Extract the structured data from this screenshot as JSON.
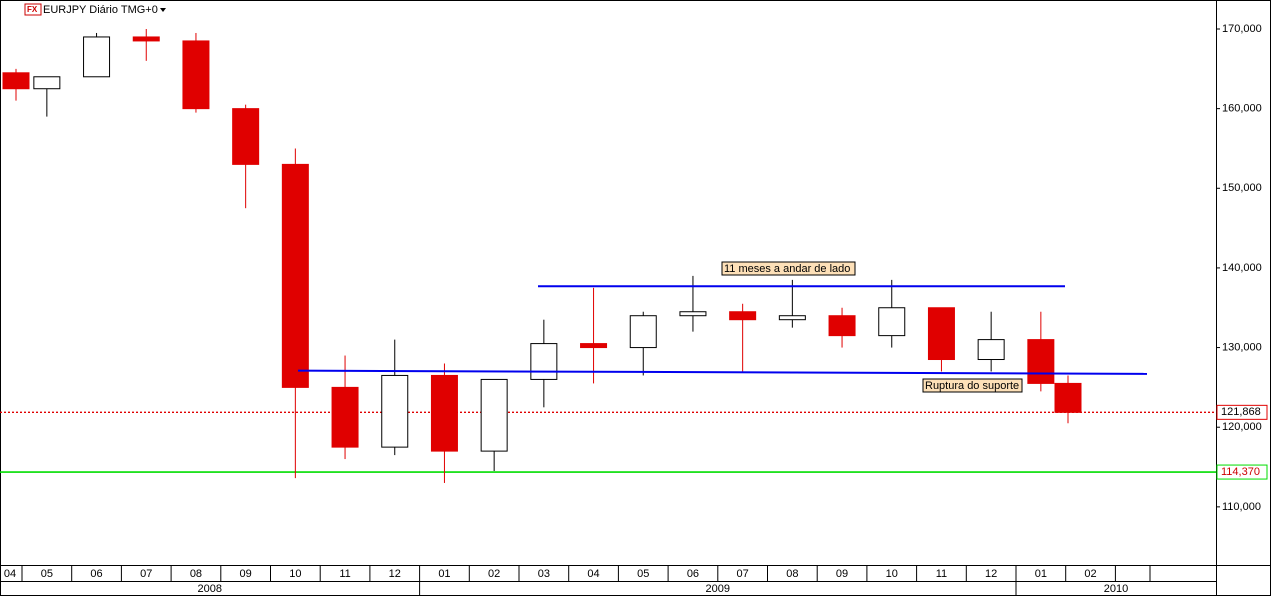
{
  "chart_data": {
    "type": "candlestick",
    "title": "EURJPY Diário TMG+0",
    "categories": [
      "04",
      "05",
      "06",
      "07",
      "08",
      "09",
      "10",
      "11",
      "12",
      "01",
      "02",
      "03",
      "04",
      "05",
      "06",
      "07",
      "08",
      "09",
      "10",
      "11",
      "12",
      "01",
      "02"
    ],
    "years": [
      "2008",
      "2009",
      "2010"
    ],
    "open": [
      164500,
      162500,
      164000,
      169000,
      168500,
      160000,
      153000,
      125000,
      117500,
      126500,
      117000,
      126000,
      130500,
      130000,
      134000,
      134500,
      133500,
      134000,
      131500,
      135000,
      128500,
      131000,
      125500
    ],
    "high": [
      165000,
      164000,
      169500,
      170000,
      169500,
      160500,
      155000,
      129000,
      131000,
      128000,
      126000,
      133500,
      137500,
      134500,
      139000,
      135500,
      138500,
      135000,
      138500,
      135000,
      134500,
      134500,
      126500
    ],
    "low": [
      161000,
      159000,
      164000,
      166000,
      159500,
      147500,
      113600,
      116000,
      116500,
      113000,
      114500,
      122500,
      125500,
      126500,
      132000,
      127000,
      132500,
      130000,
      130000,
      127000,
      127000,
      124500,
      120500
    ],
    "close": [
      162500,
      164000,
      169000,
      168500,
      160000,
      153000,
      125000,
      117500,
      126500,
      117000,
      126000,
      130500,
      130000,
      134000,
      134500,
      133500,
      134000,
      131500,
      135000,
      128500,
      131000,
      125500,
      121868
    ],
    "up_color": "#ffffff",
    "down_color": "#e00000",
    "ylim": [
      102700,
      173640
    ],
    "yticks": [
      {
        "value": 110000,
        "label": "110,000"
      },
      {
        "value": 120000,
        "label": "120,000"
      },
      {
        "value": 130000,
        "label": "130,000"
      },
      {
        "value": 140000,
        "label": "140,000"
      },
      {
        "value": 150000,
        "label": "150,000"
      },
      {
        "value": 160000,
        "label": "160,000"
      },
      {
        "value": 170000,
        "label": "170,000"
      }
    ],
    "price_lines": [
      {
        "value": 121868,
        "label": "121,868",
        "color": "#e00000",
        "style": "dotted"
      },
      {
        "value": 114370,
        "label": "114,370",
        "color": "#00dd00",
        "style": "solid"
      }
    ],
    "trend_lines": [
      {
        "values": [
          137700,
          137700
        ],
        "color": "#0000ee"
      },
      {
        "values": [
          127100,
          126700
        ],
        "color": "#0000ee"
      }
    ],
    "annotations": [
      "11 meses a andar de lado",
      "Ruptura do suporte"
    ]
  }
}
